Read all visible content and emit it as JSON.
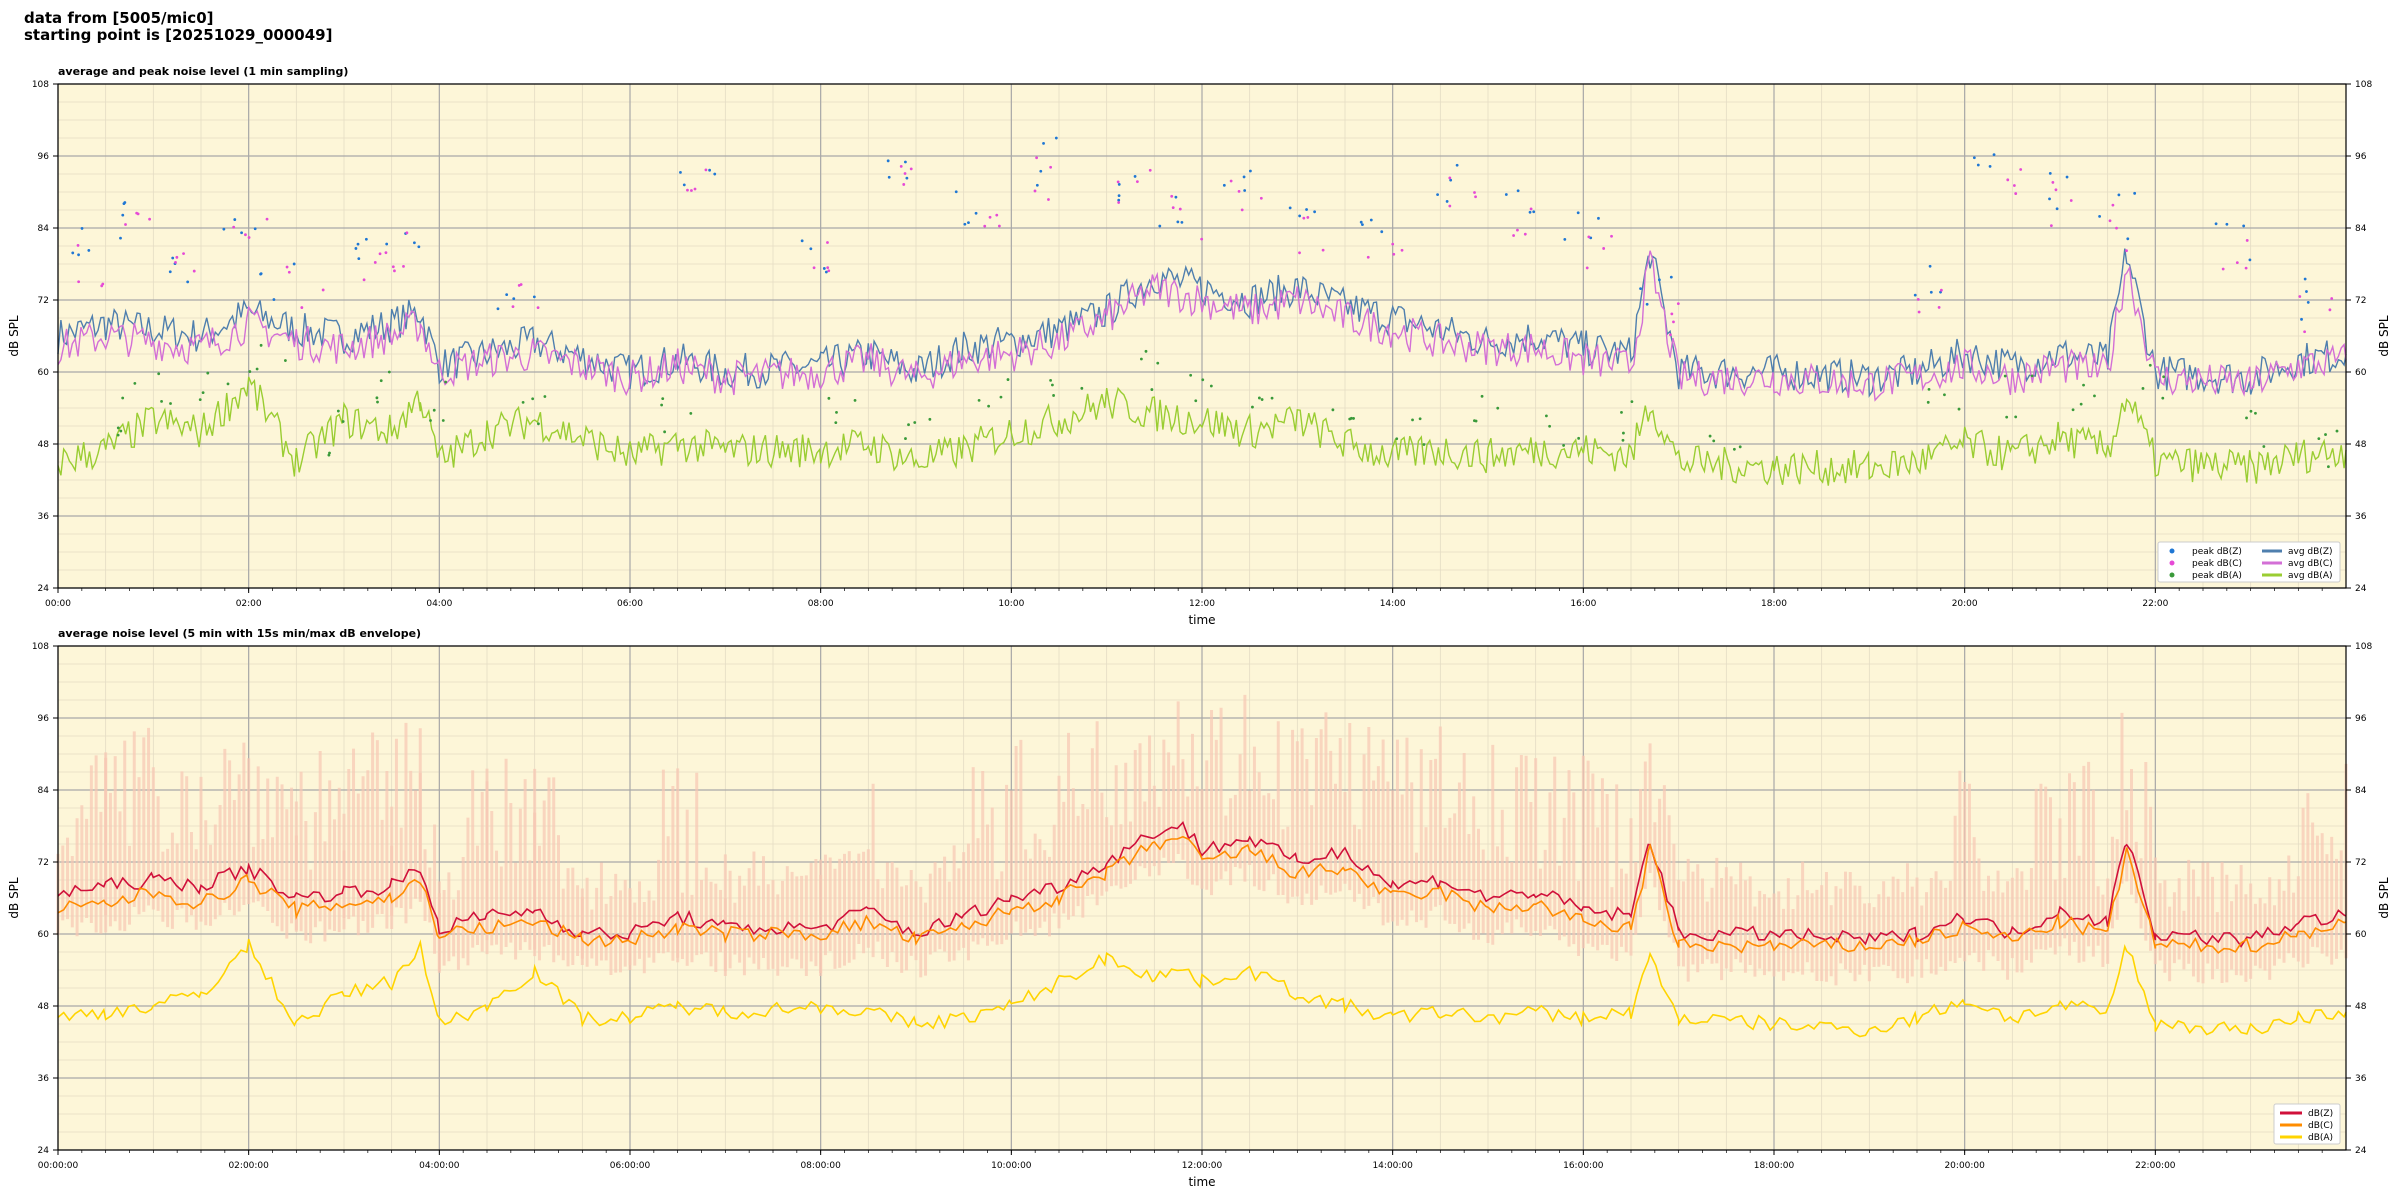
{
  "header": {
    "line1": "data from [5005/mic0]",
    "line2": "starting point is [20251029_000049]"
  },
  "colors": {
    "background": "#fdf6d8",
    "peak_z": "#1f77d4",
    "peak_c": "#e64ad6",
    "peak_a": "#3a9a3a",
    "avg_z": "#4f7fae",
    "avg_c": "#d36fd6",
    "avg_a": "#9acd32",
    "z": "#d0103a",
    "c": "#ff8c00",
    "a": "#ffd400",
    "envelope": "#f8c8b4"
  },
  "chart_data": [
    {
      "type": "line",
      "title": "average and peak noise level (1 min sampling)",
      "xlabel": "time",
      "ylabel": "dB SPL",
      "ylim": [
        24,
        108
      ],
      "xlim_hours": [
        0,
        24
      ],
      "yticks": [
        24,
        36,
        48,
        60,
        72,
        84,
        96,
        108
      ],
      "xtick_hours": [
        0,
        2,
        4,
        6,
        8,
        10,
        12,
        14,
        16,
        18,
        20,
        22
      ],
      "xtick_labels": [
        "00:00",
        "02:00",
        "04:00",
        "06:00",
        "08:00",
        "10:00",
        "12:00",
        "14:00",
        "16:00",
        "18:00",
        "20:00",
        "22:00"
      ],
      "grid": true,
      "legend_position": "bottom-right",
      "legend": [
        "peak dB(Z)",
        "peak dB(C)",
        "peak dB(A)",
        "avg dB(Z)",
        "avg dB(C)",
        "avg dB(A)"
      ],
      "series": [
        {
          "name": "avg dB(Z)",
          "x": [
            0,
            0.5,
            1,
            1.5,
            2,
            2.5,
            3,
            3.5,
            3.8,
            4,
            4.5,
            5,
            6,
            6.5,
            7,
            8,
            8.5,
            9,
            9.5,
            10,
            10.5,
            11,
            11.5,
            12,
            12.5,
            13,
            13.5,
            14,
            14.5,
            15,
            15.5,
            16,
            16.5,
            16.7,
            17,
            18,
            19,
            19.5,
            20,
            20.5,
            21,
            21.5,
            21.7,
            22,
            23,
            23.5,
            24
          ],
          "y": [
            66,
            68,
            67,
            66,
            70,
            67,
            66,
            68,
            70,
            61,
            63,
            65,
            60,
            62,
            60,
            61,
            63,
            60,
            64,
            65,
            67,
            70,
            76,
            74,
            72,
            74,
            71,
            69,
            67,
            65,
            66,
            64,
            63,
            80,
            60,
            60,
            59,
            60,
            63,
            61,
            63,
            62,
            80,
            60,
            59,
            62,
            63
          ]
        },
        {
          "name": "avg dB(C)",
          "x": [
            0,
            0.5,
            1,
            1.5,
            2,
            2.5,
            3,
            3.5,
            3.8,
            4,
            4.5,
            5,
            6,
            6.5,
            7,
            8,
            8.5,
            9,
            9.5,
            10,
            10.5,
            11,
            11.5,
            12,
            12.5,
            13,
            13.5,
            14,
            14.5,
            15,
            15.5,
            16,
            16.5,
            16.7,
            17,
            18,
            19,
            19.5,
            20,
            20.5,
            21,
            21.5,
            21.7,
            22,
            23,
            23.5,
            24
          ],
          "y": [
            64,
            66,
            65,
            64,
            68,
            65,
            64,
            66,
            68,
            60,
            62,
            63,
            59,
            61,
            59,
            60,
            62,
            59,
            62,
            63,
            65,
            69,
            74,
            72,
            70,
            72,
            69,
            67,
            65,
            64,
            64,
            62,
            61,
            78,
            59,
            59,
            58,
            59,
            61,
            59,
            61,
            60,
            78,
            59,
            58,
            61,
            62
          ]
        },
        {
          "name": "avg dB(A)",
          "x": [
            0,
            0.5,
            1,
            1.5,
            2,
            2.5,
            3,
            3.5,
            3.8,
            4,
            4.5,
            5,
            6,
            6.5,
            7,
            8,
            8.5,
            9,
            9.5,
            10,
            10.5,
            11,
            11.5,
            12,
            12.5,
            13,
            13.5,
            14,
            14.5,
            15,
            15.5,
            16,
            16.5,
            16.7,
            17,
            18,
            19,
            19.5,
            20,
            20.5,
            21,
            21.5,
            21.7,
            22,
            23,
            23.5,
            24
          ],
          "y": [
            45,
            47,
            52,
            50,
            58,
            45,
            52,
            50,
            56,
            45,
            50,
            52,
            46,
            48,
            47,
            47,
            48,
            45,
            47,
            50,
            52,
            55,
            53,
            52,
            50,
            52,
            48,
            46,
            47,
            46,
            47,
            47,
            46,
            55,
            45,
            44,
            44,
            45,
            48,
            46,
            49,
            47,
            56,
            45,
            44,
            46,
            47
          ]
        },
        {
          "name": "peak dB(Z)",
          "x": [
            0.3,
            0.8,
            1.2,
            1.9,
            2.3,
            3.2,
            3.6,
            4.8,
            6.7,
            7.9,
            8.8,
            9.6,
            10.3,
            11.2,
            11.7,
            12.4,
            13.1,
            13.8,
            14.6,
            15.3,
            16.0,
            16.8,
            19.6,
            20.3,
            20.9,
            21.6,
            22.8,
            23.6
          ],
          "y": [
            80,
            86,
            78,
            84,
            76,
            80,
            82,
            74,
            94,
            80,
            96,
            88,
            95,
            92,
            88,
            90,
            85,
            84,
            92,
            88,
            83,
            72,
            75,
            93,
            90,
            86,
            82,
            72
          ]
        },
        {
          "name": "peak dB(C)",
          "x": [
            0.4,
            0.9,
            1.4,
            2.0,
            2.6,
            3.3,
            3.7,
            4.9,
            6.8,
            8.0,
            8.9,
            9.7,
            10.4,
            11.3,
            11.8,
            12.5,
            13.2,
            13.9,
            14.7,
            15.4,
            16.1,
            16.9,
            19.7,
            20.4,
            21.0,
            21.7,
            22.9,
            23.7
          ],
          "y": [
            78,
            84,
            76,
            82,
            74,
            78,
            80,
            72,
            90,
            78,
            93,
            86,
            92,
            90,
            86,
            88,
            83,
            82,
            90,
            86,
            81,
            70,
            73,
            90,
            88,
            84,
            80,
            70
          ]
        },
        {
          "name": "peak dB(A)",
          "x": [
            0.5,
            1.0,
            1.6,
            2.2,
            2.8,
            3.4,
            4.1,
            5.0,
            6.5,
            8.2,
            9.0,
            9.8,
            10.6,
            11.4,
            12.0,
            12.7,
            13.4,
            14.2,
            15.0,
            15.8,
            16.6,
            17.5,
            19.8,
            20.6,
            21.3,
            21.9,
            23.0,
            23.8
          ],
          "y": [
            52,
            56,
            58,
            62,
            50,
            58,
            55,
            54,
            54,
            52,
            50,
            56,
            58,
            60,
            57,
            55,
            54,
            50,
            52,
            51,
            52,
            50,
            54,
            56,
            55,
            58,
            50,
            48
          ]
        }
      ]
    },
    {
      "type": "line",
      "title": "average noise level (5 min with 15s min/max dB envelope)",
      "xlabel": "time",
      "ylabel": "dB SPL",
      "ylim": [
        24,
        108
      ],
      "xlim_hours": [
        0,
        24
      ],
      "yticks": [
        24,
        36,
        48,
        60,
        72,
        84,
        96,
        108
      ],
      "xtick_hours": [
        0,
        2,
        4,
        6,
        8,
        10,
        12,
        14,
        16,
        18,
        20,
        22
      ],
      "xtick_labels": [
        "00:00:00",
        "02:00:00",
        "04:00:00",
        "06:00:00",
        "08:00:00",
        "10:00:00",
        "12:00:00",
        "14:00:00",
        "16:00:00",
        "18:00:00",
        "20:00:00",
        "22:00:00"
      ],
      "grid": true,
      "legend_position": "bottom-right",
      "legend": [
        "dB(Z)",
        "dB(C)",
        "dB(A)"
      ],
      "series": [
        {
          "name": "dB(Z)",
          "x": [
            0,
            0.5,
            1,
            1.5,
            2,
            2.5,
            3,
            3.5,
            3.8,
            4,
            4.5,
            5,
            5.5,
            6,
            6.5,
            7,
            8,
            8.5,
            9,
            9.5,
            10,
            10.5,
            11,
            11.5,
            11.8,
            12,
            12.5,
            13,
            13.5,
            14,
            14.5,
            15,
            15.5,
            16,
            16.5,
            16.7,
            17,
            18,
            19,
            19.5,
            20,
            20.5,
            21,
            21.5,
            21.7,
            22,
            23,
            23.5,
            24
          ],
          "y": [
            67,
            68,
            69,
            68,
            71,
            66,
            67,
            68,
            71,
            61,
            63,
            64,
            60,
            60,
            63,
            61,
            61,
            64,
            60,
            63,
            66,
            68,
            72,
            77,
            78,
            74,
            76,
            72,
            74,
            68,
            69,
            66,
            67,
            64,
            63,
            76,
            60,
            60,
            59,
            60,
            63,
            60,
            64,
            62,
            76,
            60,
            59,
            62,
            63
          ]
        },
        {
          "name": "dB(C)",
          "x": [
            0,
            0.5,
            1,
            1.5,
            2,
            2.5,
            3,
            3.5,
            3.8,
            4,
            4.5,
            5,
            5.5,
            6,
            6.5,
            7,
            8,
            8.5,
            9,
            9.5,
            10,
            10.5,
            11,
            11.5,
            11.8,
            12,
            12.5,
            13,
            13.5,
            14,
            14.5,
            15,
            15.5,
            16,
            16.5,
            16.7,
            17,
            18,
            19,
            19.5,
            20,
            20.5,
            21,
            21.5,
            21.7,
            22,
            23,
            23.5,
            24
          ],
          "y": [
            64,
            65,
            67,
            65,
            69,
            64,
            65,
            66,
            69,
            60,
            61,
            62,
            59,
            59,
            61,
            60,
            60,
            62,
            59,
            61,
            64,
            66,
            70,
            75,
            76,
            72,
            74,
            70,
            71,
            66,
            67,
            64,
            65,
            62,
            61,
            74,
            58,
            58,
            58,
            59,
            61,
            59,
            62,
            60,
            74,
            58,
            58,
            60,
            62
          ]
        },
        {
          "name": "dB(A)",
          "x": [
            0,
            0.5,
            1,
            1.5,
            2,
            2.5,
            3,
            3.5,
            3.8,
            4,
            4.5,
            5,
            5.5,
            6,
            6.5,
            7,
            8,
            8.5,
            9,
            9.5,
            10,
            10.5,
            11,
            11.5,
            11.8,
            12,
            12.5,
            13,
            13.5,
            14,
            14.5,
            15,
            15.5,
            16,
            16.5,
            16.7,
            17,
            18,
            19,
            19.5,
            20,
            20.5,
            21,
            21.5,
            21.7,
            22,
            23,
            23.5,
            24
          ],
          "y": [
            46,
            47,
            48,
            50,
            58,
            45,
            50,
            52,
            58,
            45,
            48,
            54,
            46,
            46,
            48,
            47,
            48,
            47,
            45,
            46,
            48,
            52,
            56,
            53,
            54,
            52,
            54,
            50,
            48,
            46,
            47,
            46,
            47,
            46,
            47,
            56,
            46,
            45,
            44,
            46,
            49,
            46,
            48,
            47,
            58,
            45,
            44,
            46,
            47
          ]
        }
      ]
    }
  ]
}
